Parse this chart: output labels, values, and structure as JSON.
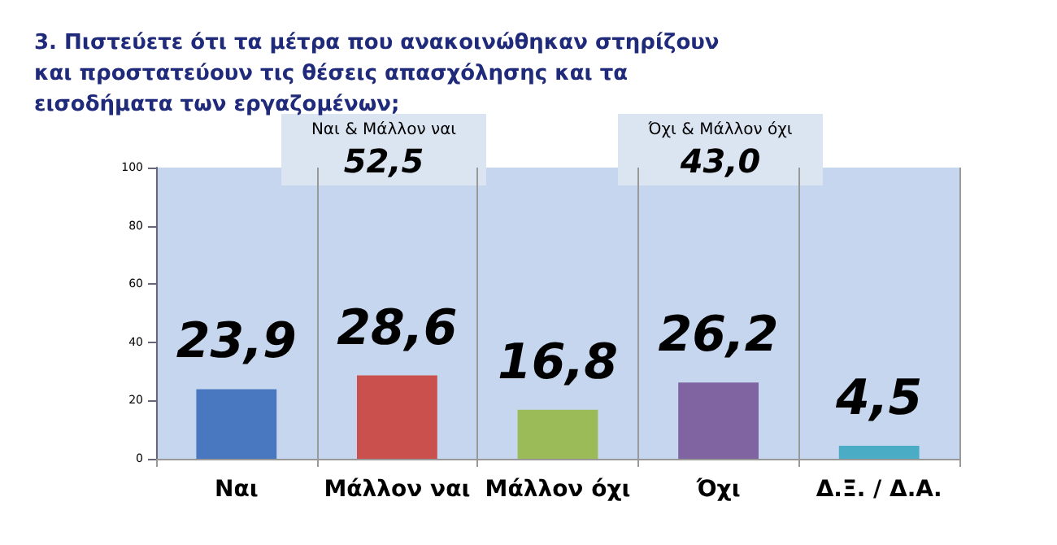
{
  "chart_data": {
    "type": "bar",
    "title": "3. Πιστεύετε ότι τα μέτρα που ανακοινώθηκαν στηρίζουν και προστατεύουν τις θέσεις απασχόλησης και τα εισοδήματα των εργαζομένων;",
    "categories": [
      "Ναι",
      "Μάλλον ναι",
      "Μάλλον όχι",
      "Όχι",
      "Δ.Ξ. / Δ.Α."
    ],
    "values": [
      23.9,
      28.6,
      16.8,
      26.2,
      4.5
    ],
    "colors": [
      "#4a78c0",
      "#c9504c",
      "#9bbb59",
      "#8064a2",
      "#4bacc6"
    ],
    "value_labels": [
      "23,9",
      "28,6",
      "16,8",
      "26,2",
      "4,5"
    ],
    "ylim": [
      0,
      100
    ],
    "yticks": [
      0,
      20,
      40,
      60,
      80,
      100
    ],
    "grid": "x",
    "annotations": [
      "Ναι & Μάλλον ναι",
      "52,5",
      "Όχι & Μάλλον όχι",
      "43,0"
    ]
  }
}
